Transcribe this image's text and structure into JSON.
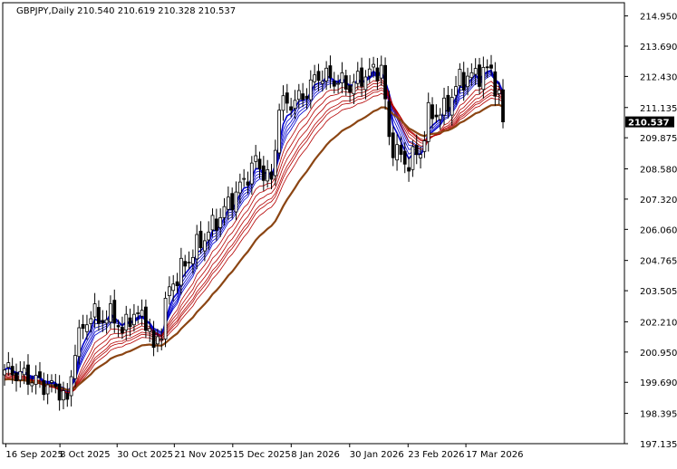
{
  "header": {
    "symbol_text": "GBPJPY,Daily  210.540 210.619 210.328 210.537"
  },
  "price_tag": "210.537",
  "colors": {
    "background": "#ffffff",
    "candle": "#000000",
    "short_ema": "#0000cd",
    "fast_ema": "#0000ff",
    "long_ema": "#b40000",
    "slow_ma": "#8b4513",
    "price_tag_bg": "#000000",
    "price_tag_fg": "#ffffff"
  },
  "chart_data": {
    "type": "candlestick",
    "ylim": [
      197.135,
      215.5
    ],
    "y_ticks": [
      "214.950",
      "213.690",
      "212.430",
      "211.135",
      "209.875",
      "208.580",
      "207.320",
      "206.060",
      "204.765",
      "203.505",
      "202.210",
      "200.950",
      "199.690",
      "198.395",
      "197.135"
    ],
    "x_ticks": [
      "16 Sep 2025",
      "8 Oct 2025",
      "30 Oct 2025",
      "21 Nov 2025",
      "15 Dec 2025",
      "8 Jan 2026",
      "30 Jan 2026",
      "23 Feb 2026",
      "17 Mar 2026"
    ],
    "last_close": 210.537,
    "close_path": [
      [
        0,
        200.2
      ],
      [
        6,
        199.9
      ],
      [
        10,
        199.6
      ],
      [
        14,
        199.4
      ],
      [
        16,
        198.8
      ],
      [
        18,
        201.2
      ],
      [
        22,
        202.6
      ],
      [
        24,
        202.3
      ],
      [
        28,
        202.5
      ],
      [
        30,
        201.7
      ],
      [
        32,
        202.5
      ],
      [
        36,
        202.4
      ],
      [
        38,
        201.0
      ],
      [
        40,
        202.0
      ],
      [
        42,
        203.6
      ],
      [
        48,
        205.1
      ],
      [
        54,
        206.4
      ],
      [
        60,
        207.8
      ],
      [
        64,
        208.9
      ],
      [
        68,
        208.0
      ],
      [
        70,
        211.2
      ],
      [
        74,
        211.4
      ],
      [
        76,
        211.6
      ],
      [
        80,
        212.5
      ],
      [
        84,
        212.3
      ],
      [
        88,
        212.0
      ],
      [
        92,
        212.5
      ],
      [
        96,
        212.8
      ],
      [
        98,
        209.8
      ],
      [
        102,
        208.8
      ],
      [
        106,
        209.3
      ],
      [
        108,
        210.8
      ],
      [
        112,
        211.0
      ],
      [
        116,
        212.3
      ],
      [
        120,
        212.5
      ],
      [
        124,
        212.7
      ],
      [
        126,
        211.5
      ],
      [
        127,
        210.537
      ]
    ],
    "ma_groups": [
      {
        "name": "",
        "offsets": [
          0.25,
          0.35,
          0.45,
          0.6,
          0.8,
          1.0
        ],
        "color": "#0000cd"
      },
      {
        "name": "",
        "offsets": [
          1.2,
          1.5,
          1.8,
          2.1,
          2.4,
          2.7
        ],
        "color": "#b40000"
      },
      {
        "name": "",
        "offsets": [
          4.2
        ],
        "color": "#8b4513"
      }
    ]
  }
}
